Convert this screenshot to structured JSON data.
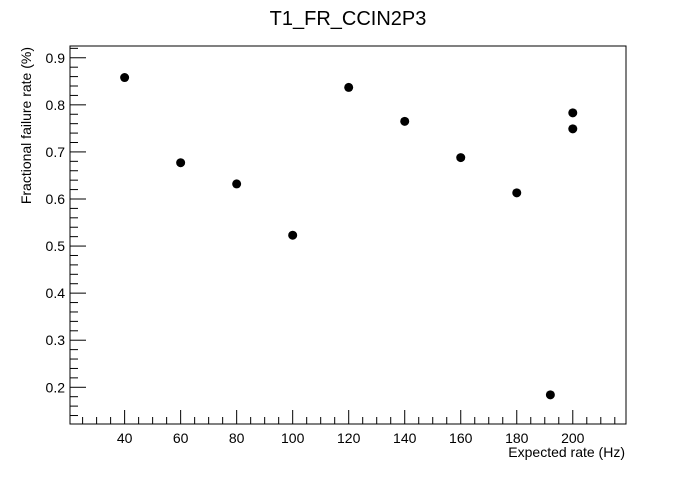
{
  "chart_data": {
    "type": "scatter",
    "title": "T1_FR_CCIN2P3",
    "xlabel": "Expected rate (Hz)",
    "ylabel": "Fractional failure rate (%)",
    "xlim": [
      20.5,
      219
    ],
    "ylim": [
      0.122,
      0.925
    ],
    "x_ticks": [
      40,
      60,
      80,
      100,
      120,
      140,
      160,
      180,
      200
    ],
    "x_tick_labels": [
      "40",
      "60",
      "80",
      "100",
      "120",
      "140",
      "160",
      "180",
      "200"
    ],
    "y_ticks": [
      0.2,
      0.3,
      0.4,
      0.5,
      0.6,
      0.7,
      0.8,
      0.9
    ],
    "y_tick_labels": [
      "0.2",
      "0.3",
      "0.4",
      "0.5",
      "0.6",
      "0.7",
      "0.8",
      "0.9"
    ],
    "grid": false,
    "legend": "none",
    "marker_color": "#000000",
    "series": [
      {
        "points": [
          {
            "x": 40,
            "y": 0.858
          },
          {
            "x": 60,
            "y": 0.677
          },
          {
            "x": 80,
            "y": 0.632
          },
          {
            "x": 100,
            "y": 0.523
          },
          {
            "x": 120,
            "y": 0.837
          },
          {
            "x": 140,
            "y": 0.765
          },
          {
            "x": 160,
            "y": 0.688
          },
          {
            "x": 180,
            "y": 0.613
          },
          {
            "x": 192,
            "y": 0.184
          },
          {
            "x": 200,
            "y": 0.749
          },
          {
            "x": 200,
            "y": 0.783
          }
        ]
      }
    ]
  }
}
